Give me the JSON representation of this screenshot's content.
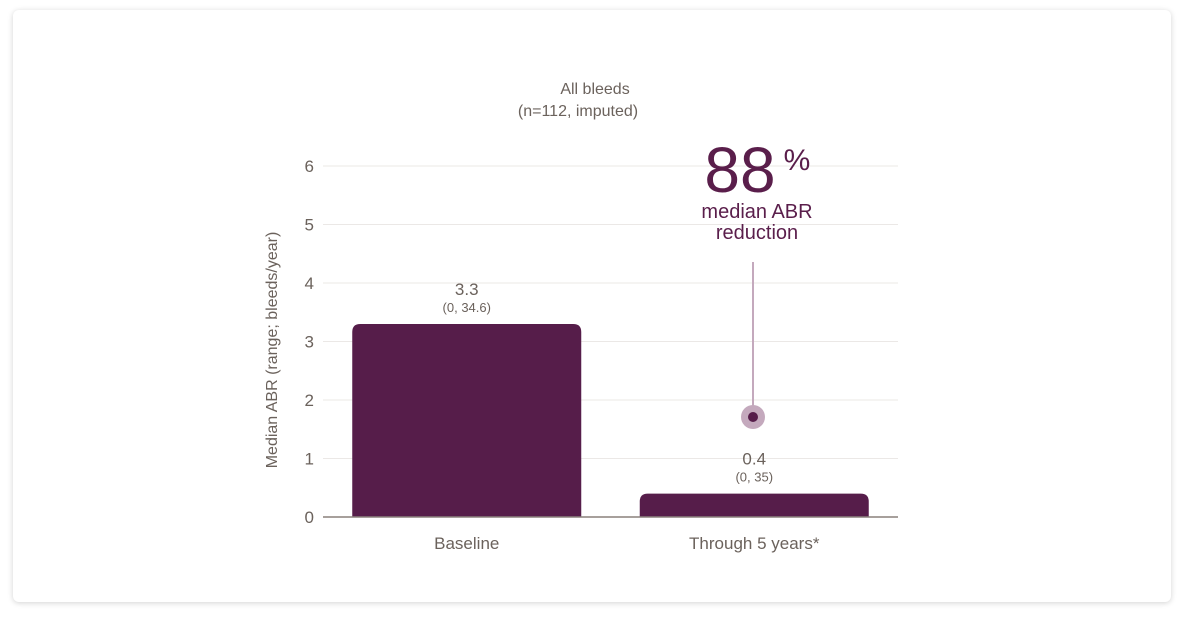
{
  "chart_data": {
    "type": "bar",
    "title": "All bleeds",
    "subtitle": "(n=112, imputed)",
    "ylabel": "Median ABR (range; bleeds/year)",
    "xlabel": "",
    "ylim": [
      0,
      6
    ],
    "yticks": [
      "0",
      "1",
      "2",
      "3",
      "4",
      "5",
      "6"
    ],
    "grid": true,
    "categories": [
      "Baseline",
      "Through 5 years*"
    ],
    "values": [
      3.3,
      0.4
    ],
    "value_labels": [
      "3.3",
      "0.4"
    ],
    "range_labels": [
      "(0, 34.6)",
      "(0, 35)"
    ],
    "annotation": {
      "value": "88",
      "unit": "%",
      "line1": "median ABR",
      "line2": "reduction"
    },
    "colors": {
      "bar": "#561d4a",
      "text": "#6b625c",
      "accent": "#5a1e4b",
      "grid": "#ebe8e6",
      "connector": "#c4a9bd"
    }
  }
}
